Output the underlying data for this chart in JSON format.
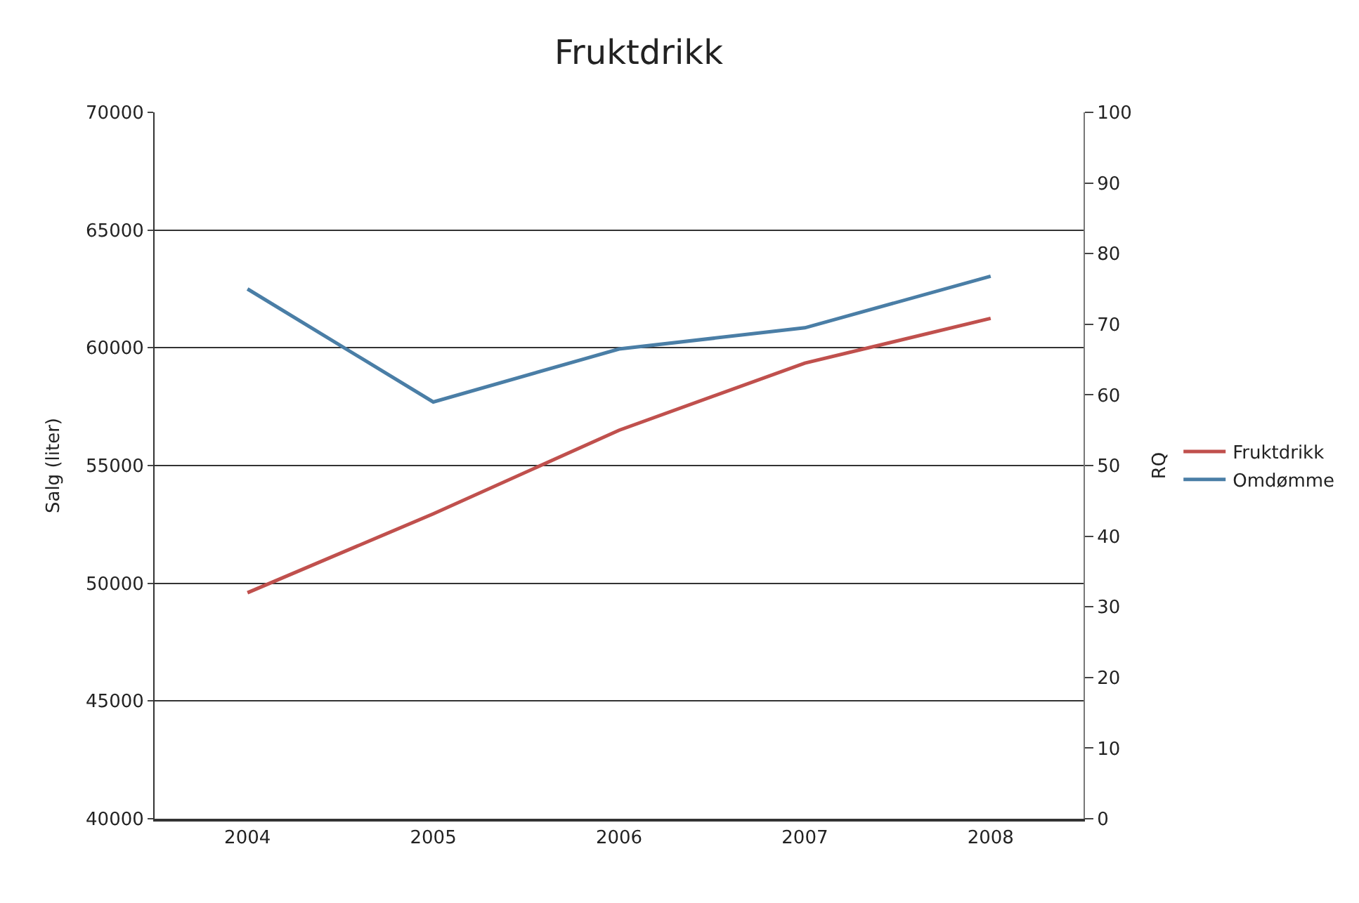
{
  "chart_data": {
    "type": "line",
    "title": "Fruktdrikk",
    "ylabel": "Salg (liter)",
    "y2label": "RQ",
    "categories": [
      "2004",
      "2005",
      "2006",
      "2007",
      "2008"
    ],
    "series": [
      {
        "name": "Fruktdrikk",
        "color": "#c0504d",
        "values": [
          49600,
          52950,
          56500,
          59350,
          61250
        ]
      },
      {
        "name": "Omdømme",
        "color": "#4a7ea6",
        "axis": "y2",
        "values": [
          75,
          59,
          66.5,
          69.5,
          76.8
        ]
      }
    ],
    "ylim": [
      40000,
      70000
    ],
    "yticks": [
      40000,
      45000,
      50000,
      55000,
      60000,
      65000,
      70000
    ],
    "y2lim": [
      0,
      100
    ],
    "y2ticks": [
      0,
      10,
      20,
      30,
      40,
      50,
      60,
      70,
      80,
      90,
      100
    ],
    "grid": "y",
    "legend": "right",
    "marker": "none",
    "line_style": "solid"
  }
}
